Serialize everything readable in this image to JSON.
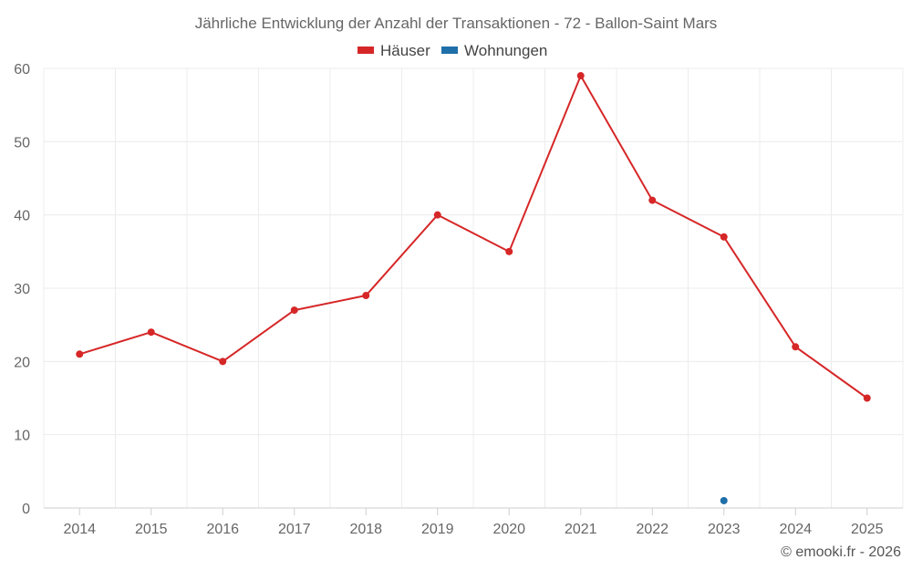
{
  "chart_data": {
    "type": "line",
    "title": "Jährliche Entwicklung der Anzahl der Transaktionen - 72 - Ballon-Saint Mars",
    "categories": [
      "2014",
      "2015",
      "2016",
      "2017",
      "2018",
      "2019",
      "2020",
      "2021",
      "2022",
      "2023",
      "2024",
      "2025"
    ],
    "series": [
      {
        "name": "Häuser",
        "color": "#d62728",
        "values": [
          21,
          24,
          20,
          27,
          29,
          40,
          35,
          59,
          42,
          37,
          22,
          15
        ]
      },
      {
        "name": "Wohnungen",
        "color": "#1f6fa8",
        "values": [
          null,
          null,
          null,
          null,
          null,
          null,
          null,
          null,
          null,
          1,
          null,
          null
        ]
      }
    ],
    "ylim": [
      0,
      60
    ],
    "yticks": [
      0,
      10,
      20,
      30,
      40,
      50,
      60
    ],
    "xlabel": "",
    "ylabel": "",
    "grid": true,
    "legend_position": "top-center"
  },
  "credit": "© emooki.fr - 2026"
}
